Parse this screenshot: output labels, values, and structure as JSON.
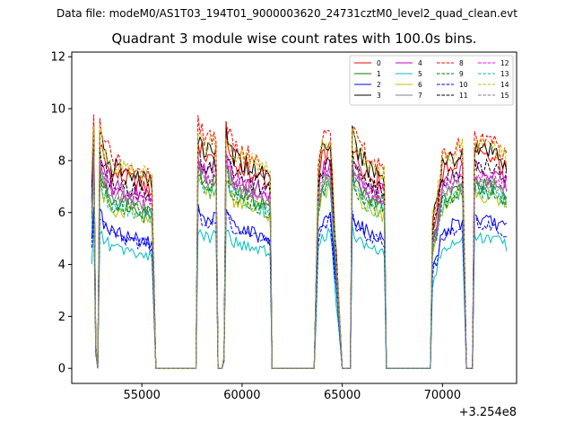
{
  "header": {
    "suptitle": "Data file: modeM0/AS1T03_194T01_9000003620_24731cztM0_level2_quad_clean.evt"
  },
  "chart_data": {
    "type": "line",
    "title": "Quadrant 3 module wise count rates with 100.0s bins.",
    "xlabel": "",
    "ylabel": "",
    "x_offset_label": "+3.254e8",
    "xlim": [
      51500,
      73700
    ],
    "ylim": [
      -0.58,
      12.18
    ],
    "xticks": [
      55000,
      60000,
      65000,
      70000
    ],
    "yticks": [
      0,
      2,
      4,
      6,
      8,
      10,
      12
    ],
    "legend_position": "upper right",
    "segments": [
      {
        "start": 52500,
        "end": 55700,
        "profile": [
          [
            52500,
            0.78
          ],
          [
            52600,
            1.05
          ],
          [
            52700,
            0.1
          ],
          [
            52800,
            0.0
          ],
          [
            52900,
            1.0
          ],
          [
            53100,
            0.92
          ],
          [
            53500,
            0.86
          ],
          [
            54500,
            0.83
          ],
          [
            55500,
            0.79
          ],
          [
            55700,
            0.0
          ]
        ]
      },
      {
        "start": 57700,
        "end": 58800,
        "profile": [
          [
            57700,
            0.0
          ],
          [
            57800,
            1.0
          ],
          [
            58200,
            0.93
          ],
          [
            58700,
            0.95
          ],
          [
            58800,
            0.0
          ]
        ]
      },
      {
        "start": 59000,
        "end": 61500,
        "profile": [
          [
            59000,
            0.0
          ],
          [
            59100,
            0.05
          ],
          [
            59200,
            1.0
          ],
          [
            59600,
            0.9
          ],
          [
            60500,
            0.86
          ],
          [
            61400,
            0.82
          ],
          [
            61500,
            0.0
          ]
        ]
      },
      {
        "start": 63600,
        "end": 65000,
        "profile": [
          [
            63600,
            0.0
          ],
          [
            63800,
            0.82
          ],
          [
            64000,
            0.92
          ],
          [
            64400,
            0.97
          ],
          [
            65000,
            0.0
          ]
        ]
      },
      {
        "start": 65400,
        "end": 67200,
        "profile": [
          [
            65400,
            0.0
          ],
          [
            65500,
            1.0
          ],
          [
            65700,
            0.93
          ],
          [
            66300,
            0.86
          ],
          [
            67100,
            0.82
          ],
          [
            67200,
            0.0
          ]
        ]
      },
      {
        "start": 69500,
        "end": 71200,
        "profile": [
          [
            69500,
            0.62
          ],
          [
            69700,
            0.7
          ],
          [
            70000,
            0.86
          ],
          [
            70500,
            0.9
          ],
          [
            71000,
            0.92
          ],
          [
            71200,
            0.0
          ]
        ]
      },
      {
        "start": 71500,
        "end": 73200,
        "profile": [
          [
            71500,
            0.0
          ],
          [
            71600,
            0.95
          ],
          [
            72000,
            0.93
          ],
          [
            72600,
            0.92
          ],
          [
            73200,
            0.88
          ]
        ]
      }
    ],
    "series": [
      {
        "name": "0",
        "color": "#ff0000",
        "style": "solid",
        "level": 8.7
      },
      {
        "name": "1",
        "color": "#008000",
        "style": "solid",
        "level": 7.6
      },
      {
        "name": "2",
        "color": "#0000ff",
        "style": "solid",
        "level": 6.1
      },
      {
        "name": "3",
        "color": "#000000",
        "style": "solid",
        "level": 9.0
      },
      {
        "name": "4",
        "color": "#bf00bf",
        "style": "solid",
        "level": 8.2
      },
      {
        "name": "5",
        "color": "#00bfbf",
        "style": "solid",
        "level": 5.4
      },
      {
        "name": "6",
        "color": "#bfbf00",
        "style": "solid",
        "level": 7.2
      },
      {
        "name": "7",
        "color": "#808080",
        "style": "solid",
        "level": 7.8
      },
      {
        "name": "8",
        "color": "#ff0000",
        "style": "dashed",
        "level": 9.4
      },
      {
        "name": "9",
        "color": "#008000",
        "style": "dashed",
        "level": 7.4
      },
      {
        "name": "10",
        "color": "#0000ff",
        "style": "dashed",
        "level": 5.9
      },
      {
        "name": "11",
        "color": "#000000",
        "style": "dashed",
        "level": 8.3
      },
      {
        "name": "12",
        "color": "#ff00ff",
        "style": "dashed",
        "level": 8.0
      },
      {
        "name": "13",
        "color": "#00bfbf",
        "style": "dashed",
        "level": 7.3
      },
      {
        "name": "14",
        "color": "#bfbf00",
        "style": "dashed",
        "level": 9.2
      },
      {
        "name": "15",
        "color": "#808080",
        "style": "dashed",
        "level": 7.7
      }
    ]
  }
}
